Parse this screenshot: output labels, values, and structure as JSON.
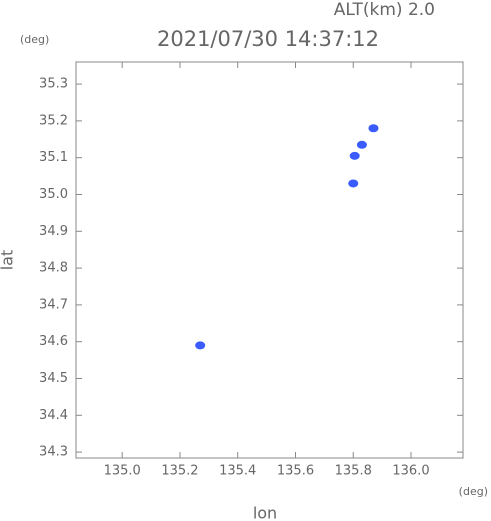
{
  "chart_data": {
    "type": "scatter",
    "title": "2021/07/30 14:37:12",
    "subtitle": "ALT(km) 2.0",
    "x_label": "lon",
    "y_label": "lat",
    "x_unit": "(deg)",
    "y_unit": "(deg)",
    "x": [
      135.87,
      135.83,
      135.805,
      135.8,
      135.27
    ],
    "values": [
      35.18,
      35.135,
      35.105,
      35.03,
      34.59
    ],
    "color": "#3a5cff",
    "xlim": [
      134.84,
      136.18
    ],
    "ylim": [
      34.284,
      35.36
    ],
    "xticks": [
      {
        "value": 135.0,
        "label": "135.0"
      },
      135.2,
      135.4,
      135.6,
      135.8,
      {
        "value": 136.0,
        "label": "136.0"
      }
    ],
    "yticks": [
      34.3,
      34.4,
      34.5,
      34.6,
      34.7,
      34.8,
      34.9,
      {
        "value": 35.0,
        "label": "35.0"
      },
      35.1,
      35.2,
      35.3
    ],
    "grid": false
  }
}
